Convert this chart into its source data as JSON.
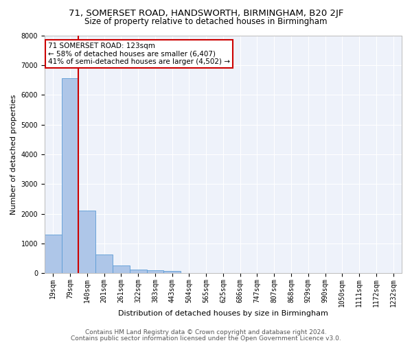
{
  "title_line1": "71, SOMERSET ROAD, HANDSWORTH, BIRMINGHAM, B20 2JF",
  "title_line2": "Size of property relative to detached houses in Birmingham",
  "xlabel": "Distribution of detached houses by size in Birmingham",
  "ylabel": "Number of detached properties",
  "bar_color": "#aec6e8",
  "bar_edge_color": "#5b9bd5",
  "vline_color": "#cc0000",
  "vline_x_index": 2,
  "annotation_line1": "71 SOMERSET ROAD: 123sqm",
  "annotation_line2": "← 58% of detached houses are smaller (6,407)",
  "annotation_line3": "41% of semi-detached houses are larger (4,502) →",
  "annotation_box_color": "#cc0000",
  "categories": [
    "19sqm",
    "79sqm",
    "140sqm",
    "201sqm",
    "261sqm",
    "322sqm",
    "383sqm",
    "443sqm",
    "504sqm",
    "565sqm",
    "625sqm",
    "686sqm",
    "747sqm",
    "807sqm",
    "868sqm",
    "929sqm",
    "990sqm",
    "1050sqm",
    "1111sqm",
    "1172sqm",
    "1232sqm"
  ],
  "values": [
    1300,
    6550,
    2100,
    630,
    250,
    120,
    90,
    70,
    0,
    0,
    0,
    0,
    0,
    0,
    0,
    0,
    0,
    0,
    0,
    0,
    0
  ],
  "ylim": [
    0,
    8000
  ],
  "yticks": [
    0,
    1000,
    2000,
    3000,
    4000,
    5000,
    6000,
    7000,
    8000
  ],
  "background_color": "#eef2fa",
  "grid_color": "#ffffff",
  "footer_line1": "Contains HM Land Registry data © Crown copyright and database right 2024.",
  "footer_line2": "Contains public sector information licensed under the Open Government Licence v3.0.",
  "title_fontsize": 9.5,
  "subtitle_fontsize": 8.5,
  "axis_label_fontsize": 8,
  "tick_fontsize": 7,
  "footer_fontsize": 6.5,
  "annotation_fontsize": 7.5
}
